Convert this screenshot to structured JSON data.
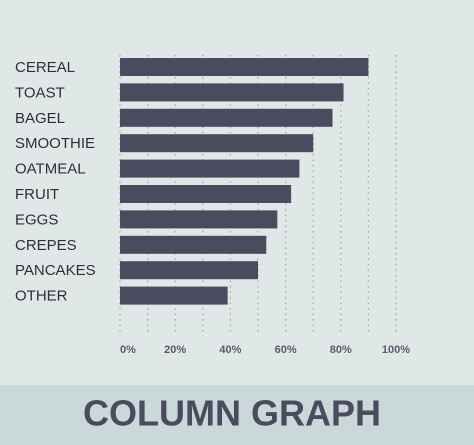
{
  "chart_data": {
    "type": "bar",
    "orientation": "horizontal",
    "title": "COLUMN GRAPH",
    "categories": [
      "CEREAL",
      "TOAST",
      "BAGEL",
      "SMOOTHIE",
      "OATMEAL",
      "FRUIT",
      "EGGS",
      "CREPES",
      "PANCAKES",
      "OTHER"
    ],
    "values": [
      90,
      81,
      77,
      70,
      65,
      62,
      57,
      53,
      50,
      39
    ],
    "color": "#4a4b5e",
    "xlim": [
      0,
      100
    ],
    "xticks": [
      {
        "value": 0,
        "label": "0%"
      },
      {
        "value": 20,
        "label": "20%"
      },
      {
        "value": 40,
        "label": "40%"
      },
      {
        "value": 60,
        "label": "60%"
      },
      {
        "value": 80,
        "label": "80%"
      },
      {
        "value": 100,
        "label": "100%"
      }
    ],
    "minor_xticks": [
      10,
      30,
      50,
      70,
      90
    ],
    "grid": true
  }
}
